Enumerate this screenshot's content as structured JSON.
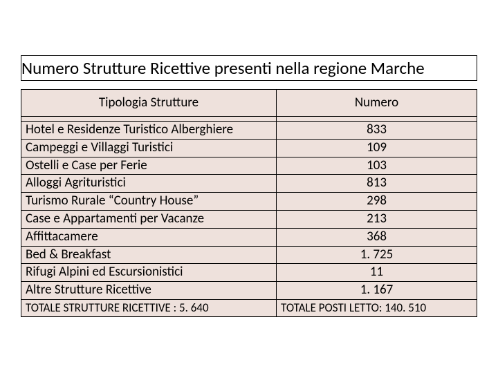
{
  "title": "Numero Strutture Ricettive presenti nella regione Marche",
  "table": {
    "columns": [
      "Tipologia Strutture",
      "Numero"
    ],
    "rows": [
      {
        "type": "Hotel e Residenze Turistico Alberghiere",
        "count": "833"
      },
      {
        "type": "Campeggi e Villaggi Turistici",
        "count": "109"
      },
      {
        "type": "Ostelli e Case per Ferie",
        "count": "103"
      },
      {
        "type": "Alloggi Agrituristici",
        "count": "813"
      },
      {
        "type": "Turismo Rurale “Country House”",
        "count": "298"
      },
      {
        "type": "Case e Appartamenti per Vacanze",
        "count": "213"
      },
      {
        "type": "Affittacamere",
        "count": "368"
      },
      {
        "type": "Bed & Breakfast",
        "count": "1. 725"
      },
      {
        "type": "Rifugi Alpini ed Escursionistici",
        "count": "11"
      },
      {
        "type": "Altre Strutture Ricettive",
        "count": "1. 167"
      }
    ],
    "footer": {
      "left": "TOTALE STRUTTURE RICETTIVE : 5. 640",
      "right": "TOTALE POSTI LETTO:  140. 510"
    }
  },
  "colors": {
    "cell_bg": "#eee1dc",
    "border": "#000000",
    "text": "#000000",
    "page_bg": "#ffffff"
  }
}
